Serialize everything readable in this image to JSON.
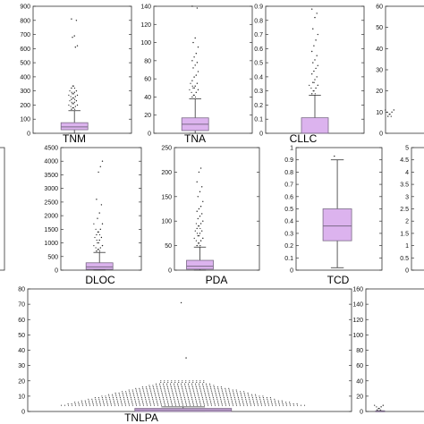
{
  "colors": {
    "box_fill": "#dcb3ee",
    "box_stroke": "#7a6a86",
    "whisker": "#333333",
    "outlier": "#222222",
    "frame": "#333333"
  },
  "chart_data": [
    {
      "type": "box",
      "metric": "TNM",
      "ylim": [
        0,
        900
      ],
      "yticks": [
        0,
        100,
        200,
        300,
        400,
        500,
        600,
        700,
        800,
        900
      ],
      "box": {
        "whisker_low": 0,
        "q1": 25,
        "median": 45,
        "q3": 75,
        "whisker_high": 160
      },
      "outliers": [
        170,
        180,
        190,
        200,
        210,
        220,
        230,
        240,
        250,
        260,
        270,
        280,
        290,
        300,
        320,
        335,
        610,
        620,
        680,
        690,
        800,
        810
      ]
    },
    {
      "type": "box",
      "metric": "TNA",
      "ylim": [
        0,
        140
      ],
      "yticks": [
        0,
        20,
        40,
        60,
        80,
        100,
        120,
        140
      ],
      "box": {
        "whisker_low": 0,
        "q1": 3,
        "median": 10,
        "q3": 17,
        "whisker_high": 38
      },
      "outliers": [
        40,
        42,
        45,
        48,
        50,
        52,
        55,
        58,
        62,
        64,
        68,
        72,
        75,
        78,
        80,
        84,
        88,
        95,
        100,
        105,
        138,
        140
      ]
    },
    {
      "type": "box",
      "metric": "CLLC",
      "ylim": [
        0,
        0.9
      ],
      "yticks": [
        0,
        0.1,
        0.2,
        0.3,
        0.4,
        0.5,
        0.6,
        0.7,
        0.8,
        0.9
      ],
      "box": {
        "whisker_low": 0,
        "q1": 0,
        "median": 0,
        "q3": 0.11,
        "whisker_high": 0.27
      },
      "outliers": [
        0.28,
        0.3,
        0.32,
        0.34,
        0.36,
        0.38,
        0.4,
        0.42,
        0.44,
        0.46,
        0.48,
        0.5,
        0.52,
        0.55,
        0.58,
        0.62,
        0.66,
        0.7,
        0.74,
        0.82,
        0.85,
        0.88
      ]
    },
    {
      "type": "box",
      "metric": "",
      "ylim": [
        0,
        60
      ],
      "yticks": [
        0,
        10,
        20,
        30,
        40,
        50,
        60
      ],
      "box": null,
      "outliers": [
        8,
        9,
        10,
        11
      ]
    },
    {
      "type": "box",
      "metric": "",
      "ylim": [
        0,
        5
      ],
      "yticks": [],
      "box": null,
      "outliers": []
    },
    {
      "type": "box",
      "metric": "DLOC",
      "ylim": [
        0,
        4500
      ],
      "yticks": [
        0,
        500,
        1000,
        1500,
        2000,
        2500,
        3000,
        3500,
        4000,
        4500
      ],
      "box": {
        "whisker_low": 0,
        "q1": 30,
        "median": 120,
        "q3": 270,
        "whisker_high": 650
      },
      "outliers": [
        700,
        760,
        820,
        900,
        1000,
        1100,
        1200,
        1300,
        1400,
        1500,
        1700,
        1900,
        2100,
        2400,
        2600,
        3600,
        3800,
        4000
      ]
    },
    {
      "type": "box",
      "metric": "PDA",
      "ylim": [
        0,
        250
      ],
      "yticks": [
        0,
        50,
        100,
        150,
        200,
        250
      ],
      "box": {
        "whisker_low": 0,
        "q1": 2,
        "median": 8,
        "q3": 20,
        "whisker_high": 47
      },
      "outliers": [
        50,
        55,
        60,
        65,
        70,
        75,
        80,
        85,
        90,
        95,
        100,
        105,
        110,
        115,
        120,
        125,
        130,
        140,
        150,
        160,
        170,
        180,
        200,
        208
      ]
    },
    {
      "type": "box",
      "metric": "TCD",
      "ylim": [
        0,
        1
      ],
      "yticks": [
        0,
        0.1,
        0.2,
        0.3,
        0.4,
        0.5,
        0.6,
        0.7,
        0.8,
        0.9,
        1
      ],
      "box": {
        "whisker_low": 0.02,
        "q1": 0.24,
        "median": 0.36,
        "q3": 0.5,
        "whisker_high": 0.9
      },
      "outliers": [
        0.93
      ]
    },
    {
      "type": "box",
      "metric": "",
      "ylim": [
        0,
        5
      ],
      "yticks": [
        0,
        0.5,
        1,
        1.5,
        2,
        2.5,
        3,
        3.5,
        4,
        4.5,
        5
      ],
      "box": null,
      "outliers": []
    },
    {
      "type": "box",
      "metric": "TNLPA",
      "ylim": [
        0,
        80
      ],
      "yticks": [
        0,
        10,
        20,
        30,
        40,
        50,
        60,
        70,
        80
      ],
      "box": {
        "whisker_low": 0,
        "q1": 0,
        "median": 1,
        "q3": 2,
        "whisker_high": 3
      },
      "outliers": [
        4,
        5,
        6,
        7,
        8,
        9,
        10,
        11,
        12,
        13,
        14,
        15,
        16,
        17,
        18,
        19,
        20,
        35,
        71
      ]
    },
    {
      "type": "box",
      "metric": "",
      "ylim": [
        0,
        160
      ],
      "yticks": [
        0,
        20,
        40,
        60,
        80,
        100,
        120,
        140,
        160
      ],
      "box": {
        "whisker_low": 0,
        "q1": 0,
        "median": 0,
        "q3": 1,
        "whisker_high": 1
      },
      "outliers": [
        2,
        4,
        6,
        8
      ]
    }
  ]
}
